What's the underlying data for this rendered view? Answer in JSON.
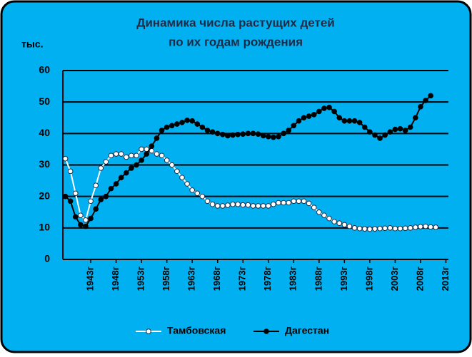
{
  "chart_data": {
    "type": "line",
    "title": [
      "Динамика числа растущих детей",
      "по их годам рождения"
    ],
    "y_unit": "тыс.",
    "categories": [
      null,
      null,
      null,
      null,
      null,
      "1943г",
      null,
      null,
      null,
      null,
      "1948г",
      null,
      null,
      null,
      null,
      "1953г",
      null,
      null,
      null,
      null,
      "1958г",
      null,
      null,
      null,
      null,
      "1963г",
      null,
      null,
      null,
      null,
      "1968г",
      null,
      null,
      null,
      null,
      "1973г",
      null,
      null,
      null,
      null,
      "1978г",
      null,
      null,
      null,
      null,
      "1983г",
      null,
      null,
      null,
      null,
      "1988г",
      null,
      null,
      null,
      null,
      "1993г",
      null,
      null,
      null,
      null,
      "1998г",
      null,
      null,
      null,
      null,
      "2003г",
      null,
      null,
      null,
      null,
      "2008г",
      null,
      null,
      null,
      null,
      "2013г"
    ],
    "series": [
      {
        "name": "Тамбовская",
        "color": "#ffffff",
        "marker_edge": "#1f2a44",
        "values": [
          32,
          28,
          21,
          14,
          12.5,
          18.5,
          23.5,
          29,
          31,
          33,
          33.5,
          33.5,
          32.5,
          33,
          33,
          35,
          35,
          34.5,
          33.5,
          33,
          31.5,
          30,
          28,
          26,
          24,
          22,
          21,
          20,
          18.5,
          17.5,
          17,
          17,
          17.2,
          17.5,
          17.5,
          17.3,
          17.3,
          17,
          17,
          17,
          17,
          17.5,
          18,
          18,
          18,
          18.5,
          18.5,
          18.5,
          17.8,
          16.5,
          15,
          14,
          13,
          12,
          11.5,
          11,
          10.5,
          10,
          9.8,
          9.7,
          9.6,
          9.7,
          9.8,
          9.9,
          10,
          9.8,
          9.8,
          9.9,
          10,
          10.2,
          10.4,
          10.5,
          10.3,
          10.2,
          null,
          null
        ]
      },
      {
        "name": "Дагестан",
        "color": "#000000",
        "marker_edge": "#000000",
        "values": [
          20,
          18.5,
          13.5,
          11,
          10.5,
          13,
          16,
          19,
          20,
          22.5,
          24,
          26,
          27.5,
          29,
          30,
          31.5,
          33.5,
          36,
          38.5,
          41,
          42,
          42.5,
          43,
          43.5,
          44.2,
          44,
          43,
          42,
          41,
          40.5,
          40,
          39.7,
          39.3,
          39.5,
          39.7,
          39.8,
          40,
          40,
          39.8,
          39.3,
          39,
          38.8,
          39,
          40,
          41,
          42.5,
          44,
          45,
          45.5,
          46,
          47,
          48,
          48.3,
          47,
          45,
          44,
          44,
          44,
          43.5,
          42,
          40.5,
          39.5,
          38.5,
          39.5,
          40.5,
          41.3,
          41.5,
          41,
          42,
          45,
          48.5,
          50.5,
          52,
          null,
          null,
          null
        ]
      }
    ],
    "ylim": [
      0,
      60
    ],
    "yticks": [
      0,
      10,
      20,
      30,
      40,
      50,
      60
    ],
    "grid": true,
    "legend": "bottom"
  }
}
